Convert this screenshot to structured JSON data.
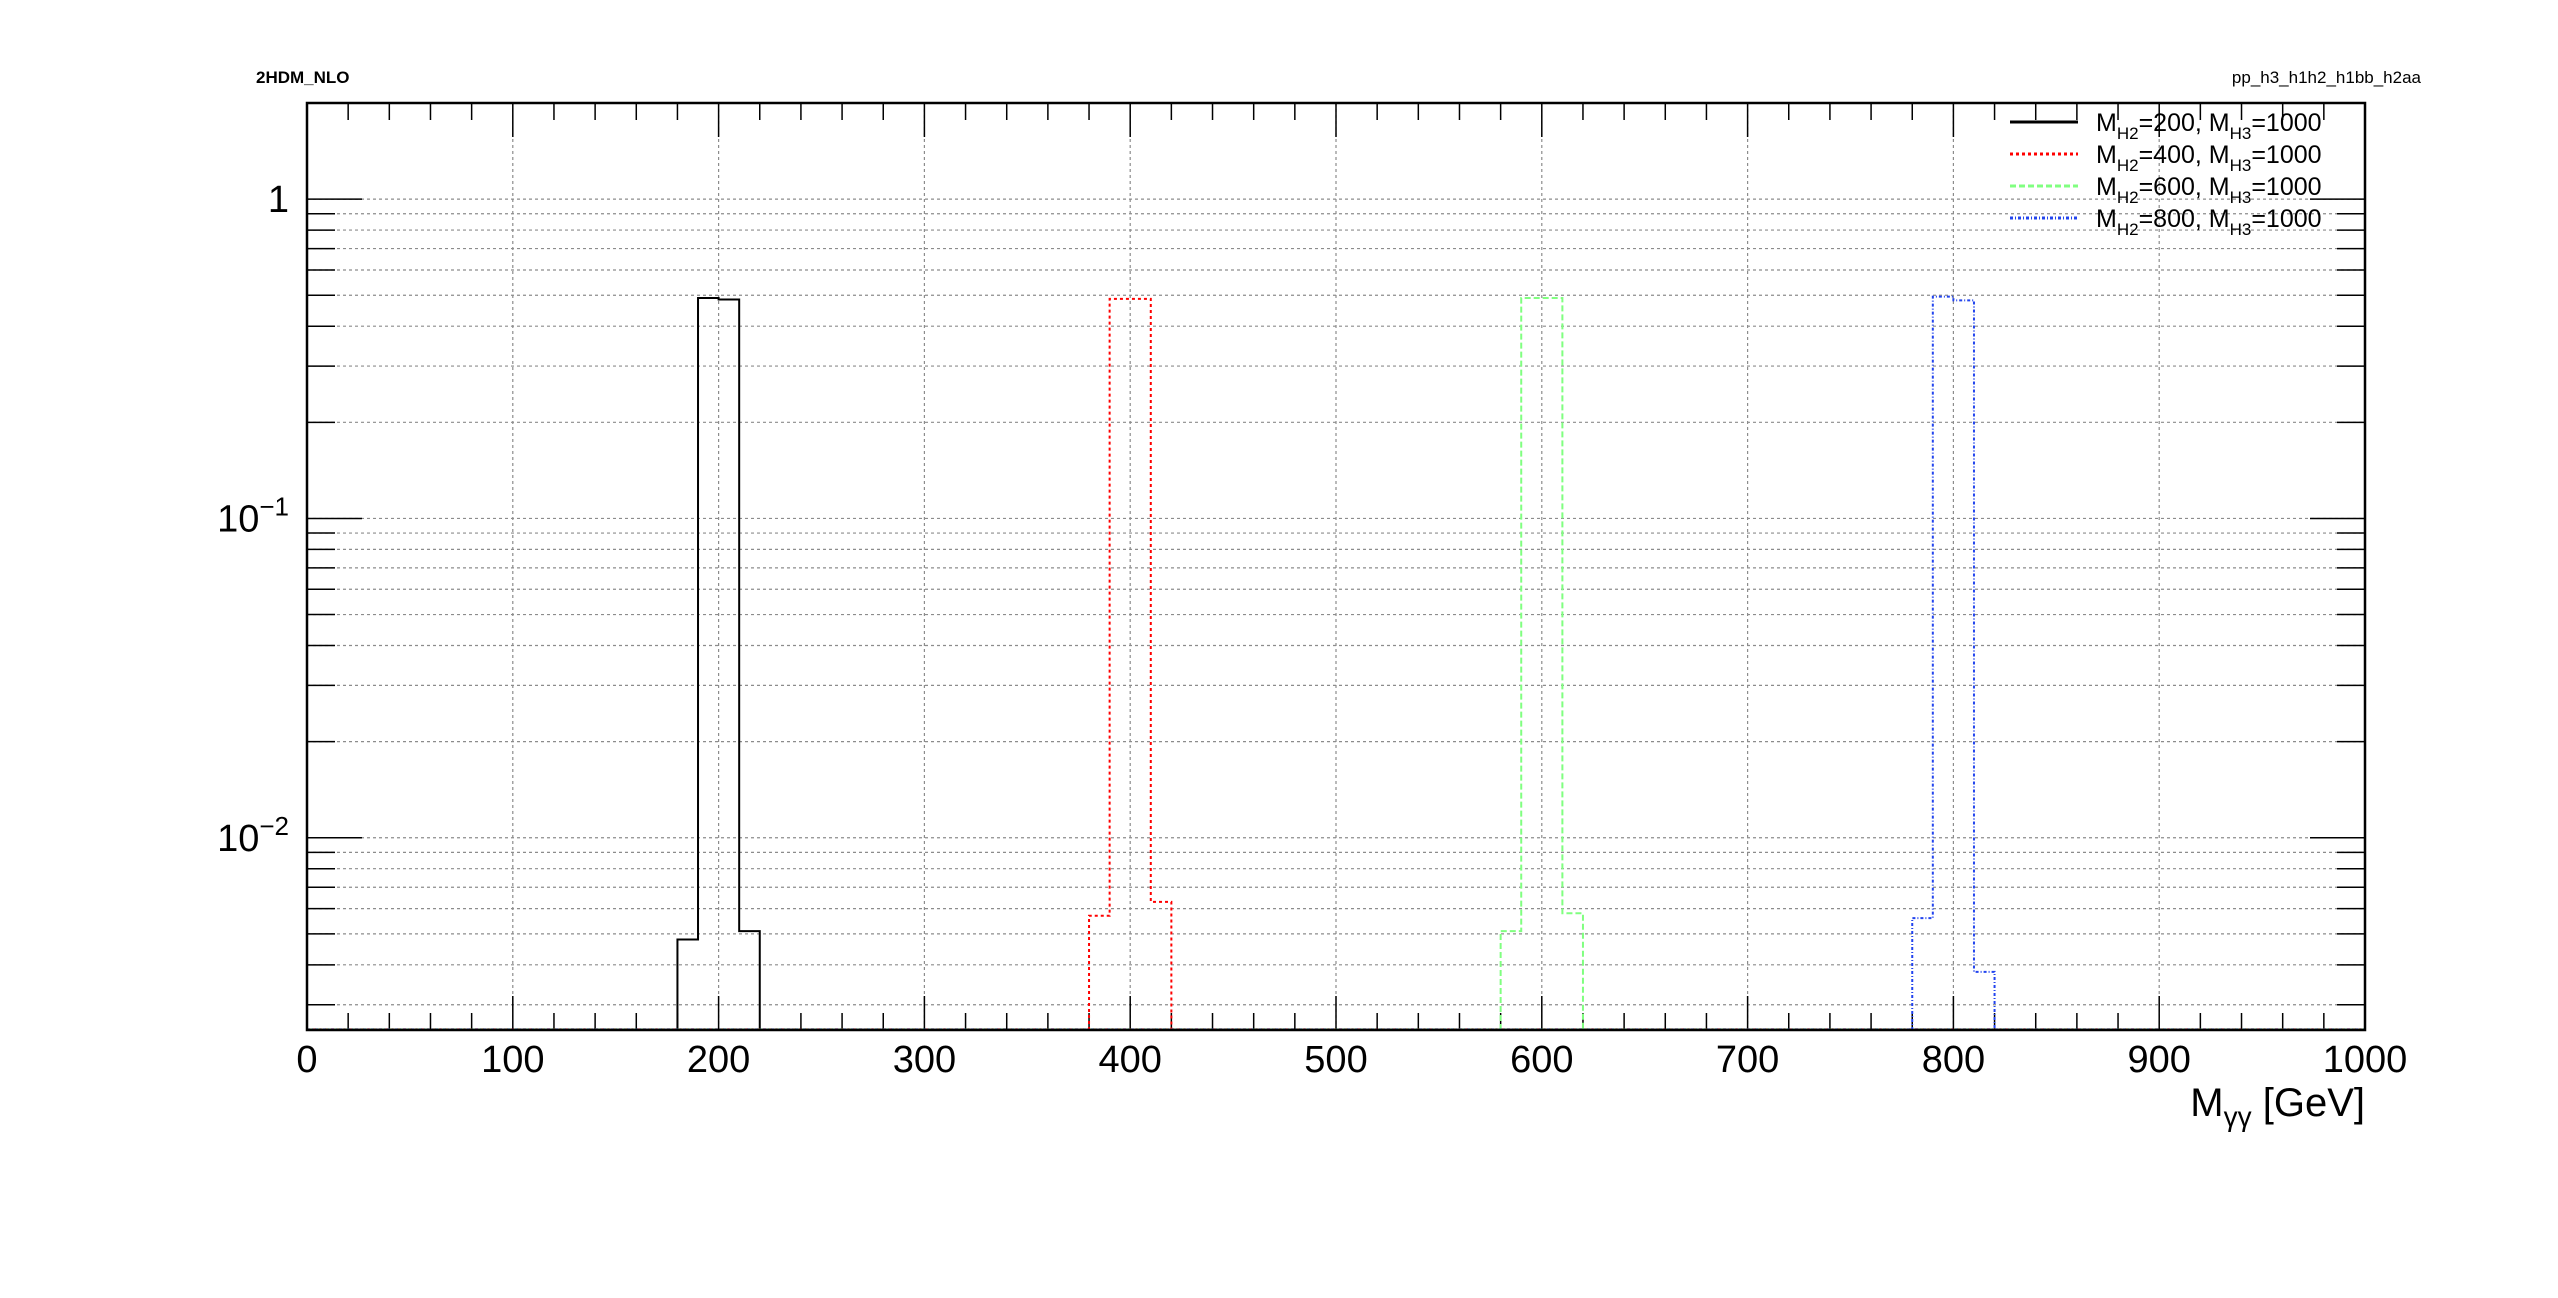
{
  "header": {
    "left_label": "2HDM_NLO",
    "right_label": "pp_h3_h1h2_h1bb_h2aa"
  },
  "chart_data": {
    "type": "line",
    "title": "",
    "xlabel": {
      "main": "M",
      "sub": "γγ",
      "unit": " [GeV]"
    },
    "ylabel": "",
    "xlim": [
      0,
      1000
    ],
    "ylim": [
      0.0025,
      2.0
    ],
    "y_scale": "log",
    "grid": true,
    "legend_position": "top-right",
    "x_ticks": [
      "0",
      "100",
      "200",
      "300",
      "400",
      "500",
      "600",
      "700",
      "800",
      "900",
      "1000"
    ],
    "y_ticks": [
      {
        "value": 1,
        "base": "1",
        "exp": ""
      },
      {
        "value": 0.1,
        "base": "10",
        "exp": "−1"
      },
      {
        "value": 0.01,
        "base": "10",
        "exp": "−2"
      }
    ],
    "bin_width": 10,
    "series": [
      {
        "legend": {
          "a": "M",
          "a_sub": "H2",
          "a_val": "=200, ",
          "b": "M",
          "b_sub": "H3",
          "b_val": "=1000"
        },
        "color": "#000000",
        "dash": "",
        "bins": [
          [
            180,
            0.0048
          ],
          [
            190,
            0.49
          ],
          [
            200,
            0.485
          ],
          [
            210,
            0.0051
          ]
        ]
      },
      {
        "legend": {
          "a": "M",
          "a_sub": "H2",
          "a_val": "=400, ",
          "b": "M",
          "b_sub": "H3",
          "b_val": "=1000"
        },
        "color": "#ff0000",
        "dash": "3,3",
        "bins": [
          [
            380,
            0.0057
          ],
          [
            390,
            0.487
          ],
          [
            400,
            0.487
          ],
          [
            410,
            0.0063
          ]
        ]
      },
      {
        "legend": {
          "a": "M",
          "a_sub": "H2",
          "a_val": "=600, ",
          "b": "M",
          "b_sub": "H3",
          "b_val": "=1000"
        },
        "color": "#80ff80",
        "dash": "6,3",
        "bins": [
          [
            580,
            0.0051
          ],
          [
            590,
            0.49
          ],
          [
            600,
            0.49
          ],
          [
            610,
            0.0058
          ]
        ]
      },
      {
        "legend": {
          "a": "M",
          "a_sub": "H2",
          "a_val": "=800, ",
          "b": "M",
          "b_sub": "H3",
          "b_val": "=1000"
        },
        "color": "#2244ee",
        "dash": "3,2,1,2",
        "bins": [
          [
            780,
            0.0056
          ],
          [
            790,
            0.495
          ],
          [
            800,
            0.482
          ],
          [
            810,
            0.0038
          ]
        ]
      }
    ]
  }
}
